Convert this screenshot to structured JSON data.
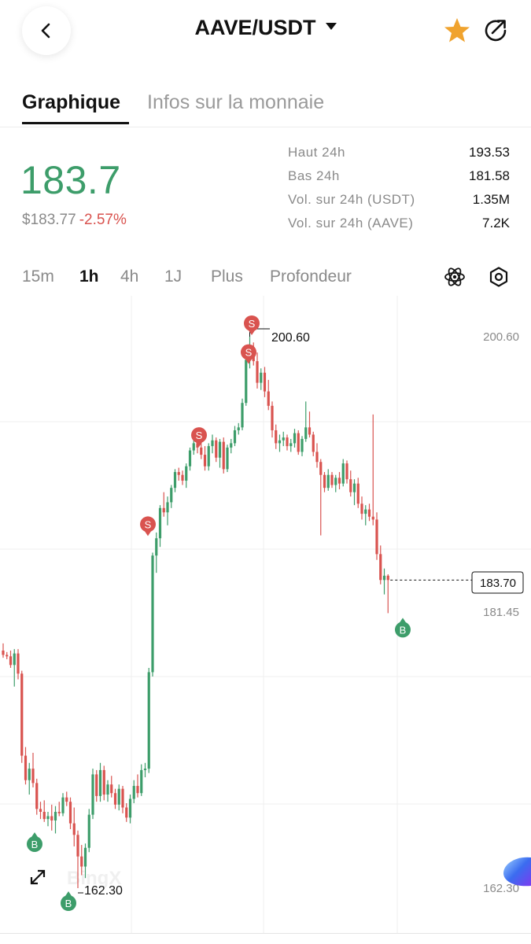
{
  "header": {
    "pair": "AAVE/USDT"
  },
  "tabs": [
    {
      "label": "Graphique"
    },
    {
      "label": "Infos sur la monnaie"
    }
  ],
  "ticker": {
    "last_price": "183.7",
    "usd_price": "$183.77",
    "change": "-2.57%",
    "stats": [
      {
        "label": "Haut 24h",
        "value": "193.53"
      },
      {
        "label": "Bas 24h",
        "value": "181.58"
      },
      {
        "label": "Vol. sur 24h (USDT)",
        "value": "1.35M"
      },
      {
        "label": "Vol. sur 24h (AAVE)",
        "value": "7.2K"
      }
    ]
  },
  "intervals": [
    "15m",
    "1h",
    "4h",
    "1J",
    "Plus",
    "Profondeur"
  ],
  "icons": {
    "back": "chevron-left-icon",
    "dropdown": "caret-down-icon",
    "favorite": "star-icon",
    "share": "share-icon",
    "indicators": "atom-icon",
    "settings": "hexagon-settings-icon",
    "fullscreen": "expand-arrows-icon"
  },
  "colors": {
    "up": "#3d9d6a",
    "down": "#d9534f",
    "favorite": "#f0a32e",
    "text": "#111111",
    "muted": "#8a8a8a"
  },
  "chart_data": {
    "type": "candlestick",
    "y_axis_labels": [
      "200.60",
      "181.45",
      "162.30"
    ],
    "current_price_label": "183.70",
    "high_marker": "200.60",
    "low_marker": "162.30",
    "trade_markers": [
      {
        "side": "S",
        "price": 200.6
      },
      {
        "side": "S",
        "price": 199.8
      },
      {
        "side": "S",
        "price": 193.6
      },
      {
        "side": "S",
        "price": 187.3
      },
      {
        "side": "B",
        "price": 181.4
      },
      {
        "side": "B",
        "price": 166.4
      },
      {
        "side": "B",
        "price": 162.3
      }
    ],
    "watermark": "BingX",
    "candles": [
      [
        178.8,
        179.3,
        178.3,
        178.5
      ],
      [
        178.5,
        178.7,
        178.2,
        178.4
      ],
      [
        178.4,
        178.8,
        177.6,
        177.8
      ],
      [
        177.8,
        178.9,
        176.3,
        178.6
      ],
      [
        178.6,
        178.9,
        176.8,
        177.2
      ],
      [
        177.2,
        177.4,
        171.0,
        171.5
      ],
      [
        171.5,
        172.1,
        169.5,
        169.8
      ],
      [
        169.8,
        171.0,
        168.8,
        170.6
      ],
      [
        170.6,
        171.7,
        169.3,
        169.6
      ],
      [
        169.6,
        169.9,
        167.4,
        167.8
      ],
      [
        167.8,
        168.3,
        167.1,
        167.6
      ],
      [
        167.6,
        168.4,
        166.9,
        167.1
      ],
      [
        167.1,
        167.6,
        166.6,
        167.3
      ],
      [
        167.3,
        168.1,
        166.3,
        167.0
      ],
      [
        167.0,
        168.0,
        166.1,
        167.6
      ],
      [
        167.6,
        168.3,
        167.3,
        167.5
      ],
      [
        167.5,
        168.9,
        167.3,
        168.6
      ],
      [
        168.6,
        169.0,
        168.0,
        168.3
      ],
      [
        168.3,
        168.6,
        166.4,
        166.8
      ],
      [
        166.8,
        167.9,
        165.2,
        166.0
      ],
      [
        166.0,
        166.3,
        162.3,
        164.5
      ],
      [
        164.5,
        165.3,
        163.2,
        163.8
      ],
      [
        163.8,
        165.4,
        163.0,
        165.1
      ],
      [
        165.1,
        167.8,
        164.8,
        167.4
      ],
      [
        167.4,
        170.6,
        167.1,
        170.2
      ],
      [
        170.2,
        170.5,
        168.3,
        168.7
      ],
      [
        168.7,
        171.0,
        168.3,
        170.5
      ],
      [
        170.5,
        170.8,
        168.4,
        168.8
      ],
      [
        168.8,
        169.8,
        168.3,
        169.5
      ],
      [
        169.5,
        170.1,
        168.6,
        168.9
      ],
      [
        168.9,
        169.2,
        167.8,
        168.1
      ],
      [
        168.1,
        169.5,
        167.7,
        169.2
      ],
      [
        169.2,
        169.4,
        167.5,
        167.9
      ],
      [
        167.9,
        168.2,
        166.9,
        167.2
      ],
      [
        167.2,
        168.8,
        166.8,
        168.5
      ],
      [
        168.5,
        169.8,
        168.2,
        169.4
      ],
      [
        169.4,
        170.2,
        168.6,
        168.9
      ],
      [
        168.9,
        170.9,
        168.7,
        170.5
      ],
      [
        170.5,
        171.0,
        170.0,
        170.6
      ],
      [
        170.6,
        177.6,
        170.3,
        177.3
      ],
      [
        177.3,
        185.6,
        177.0,
        185.4
      ],
      [
        185.4,
        187.0,
        184.2,
        186.6
      ],
      [
        186.6,
        188.9,
        186.0,
        188.7
      ],
      [
        188.7,
        189.8,
        188.1,
        188.4
      ],
      [
        188.4,
        189.5,
        187.5,
        189.1
      ],
      [
        189.1,
        190.3,
        188.7,
        190.1
      ],
      [
        190.1,
        191.4,
        189.8,
        191.2
      ],
      [
        191.2,
        191.5,
        190.6,
        191.0
      ],
      [
        191.0,
        191.3,
        190.3,
        190.6
      ],
      [
        190.6,
        191.8,
        190.1,
        191.6
      ],
      [
        191.6,
        192.9,
        191.3,
        192.7
      ],
      [
        192.7,
        193.5,
        192.4,
        193.2
      ],
      [
        193.2,
        193.4,
        192.5,
        192.9
      ],
      [
        192.9,
        193.6,
        192.1,
        192.4
      ],
      [
        192.4,
        193.0,
        191.3,
        191.6
      ],
      [
        191.6,
        193.2,
        191.3,
        193.0
      ],
      [
        193.0,
        193.8,
        192.5,
        193.4
      ],
      [
        193.4,
        193.6,
        191.9,
        192.2
      ],
      [
        192.2,
        193.5,
        191.5,
        193.3
      ],
      [
        193.3,
        193.6,
        191.1,
        191.4
      ],
      [
        191.4,
        193.1,
        191.2,
        192.9
      ],
      [
        192.9,
        193.5,
        192.5,
        193.2
      ],
      [
        193.2,
        194.4,
        193.0,
        194.1
      ],
      [
        194.1,
        194.6,
        193.8,
        194.3
      ],
      [
        194.3,
        196.3,
        194.1,
        196.0
      ],
      [
        196.0,
        199.8,
        195.8,
        199.0
      ],
      [
        199.0,
        200.6,
        198.4,
        199.6
      ],
      [
        199.6,
        200.2,
        198.6,
        198.9
      ],
      [
        198.9,
        199.5,
        197.0,
        197.4
      ],
      [
        197.4,
        198.4,
        196.9,
        198.1
      ],
      [
        198.1,
        198.5,
        196.4,
        196.8
      ],
      [
        196.8,
        197.6,
        195.5,
        195.8
      ],
      [
        195.8,
        196.1,
        193.6,
        194.1
      ],
      [
        194.1,
        194.5,
        192.8,
        193.2
      ],
      [
        193.2,
        193.8,
        192.6,
        193.4
      ],
      [
        193.4,
        194.0,
        193.0,
        193.6
      ],
      [
        193.6,
        193.8,
        192.7,
        193.0
      ],
      [
        193.0,
        193.5,
        192.6,
        193.2
      ],
      [
        193.2,
        194.2,
        192.9,
        193.9
      ],
      [
        193.9,
        194.1,
        192.4,
        192.6
      ],
      [
        192.6,
        193.7,
        192.3,
        193.5
      ],
      [
        193.5,
        196.1,
        193.3,
        194.3
      ],
      [
        194.3,
        195.4,
        193.6,
        193.8
      ],
      [
        193.8,
        194.0,
        192.3,
        192.6
      ],
      [
        192.6,
        193.2,
        191.5,
        191.9
      ],
      [
        191.9,
        192.1,
        186.8,
        191.0
      ],
      [
        191.0,
        191.2,
        189.8,
        190.1
      ],
      [
        190.1,
        191.4,
        189.9,
        191.0
      ],
      [
        191.0,
        191.2,
        190.1,
        190.3
      ],
      [
        190.3,
        191.0,
        189.8,
        190.8
      ],
      [
        190.8,
        191.2,
        190.0,
        190.4
      ],
      [
        190.4,
        192.1,
        190.2,
        191.8
      ],
      [
        191.8,
        192.0,
        190.4,
        190.7
      ],
      [
        190.7,
        191.3,
        189.5,
        189.8
      ],
      [
        189.8,
        190.7,
        188.9,
        190.4
      ],
      [
        190.4,
        190.8,
        188.7,
        189.0
      ],
      [
        189.0,
        189.5,
        187.9,
        188.3
      ],
      [
        188.3,
        188.9,
        187.5,
        188.6
      ],
      [
        188.6,
        189.0,
        187.8,
        188.1
      ],
      [
        188.1,
        195.2,
        187.5,
        187.9
      ],
      [
        187.9,
        188.4,
        185.1,
        185.5
      ],
      [
        185.5,
        186.1,
        183.4,
        183.7
      ],
      [
        183.7,
        184.5,
        182.7,
        184.0
      ],
      [
        184.0,
        184.1,
        181.4,
        183.7
      ]
    ]
  }
}
